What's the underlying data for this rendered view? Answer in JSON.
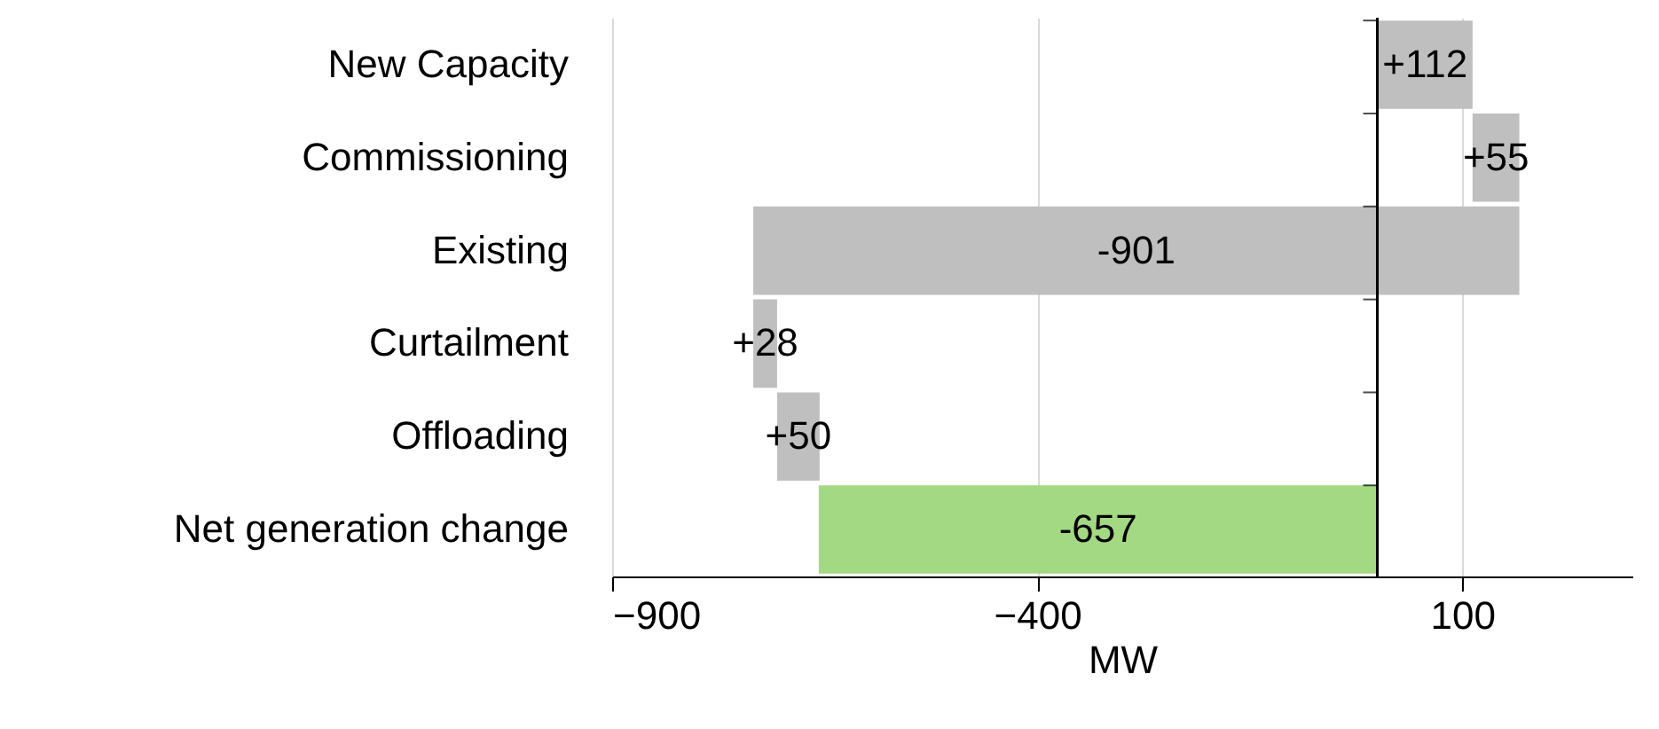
{
  "chart_data": {
    "type": "bar",
    "orientation": "horizontal",
    "xlabel": "MW",
    "categories": [
      "New Capacity",
      "Commissioning",
      "Existing",
      "Curtailment",
      "Offloading",
      "Net generation change"
    ],
    "values": [
      112,
      55,
      -901,
      28,
      50,
      -657
    ],
    "base": [
      0,
      112,
      167,
      -734,
      -706,
      0
    ],
    "colors": [
      "#bfbfbf",
      "#bfbfbf",
      "#bfbfbf",
      "#bfbfbf",
      "#bfbfbf",
      "#a3d982"
    ],
    "value_labels": [
      "+112",
      "+55",
      "-901",
      "+28",
      "+50",
      "-657"
    ],
    "xlim": [
      -900,
      300
    ],
    "xticks": [
      -900,
      -400,
      100
    ],
    "grid": "x"
  }
}
